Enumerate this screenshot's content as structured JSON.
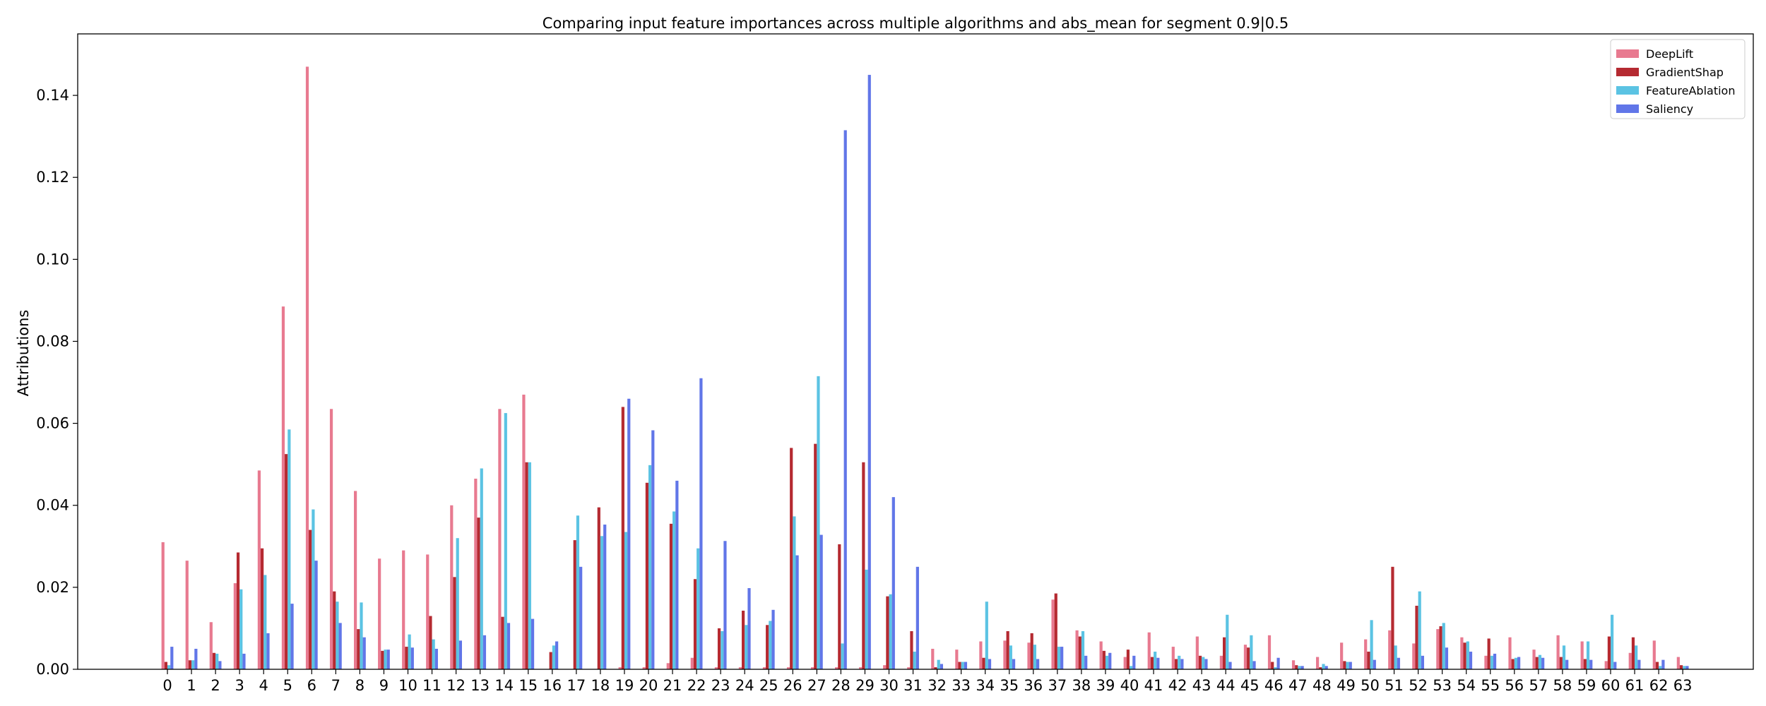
{
  "chart_data": {
    "type": "bar",
    "title": "Comparing input feature importances across multiple algorithms and abs_mean for segment 0.9|0.5",
    "xlabel": "",
    "ylabel": "Attributions",
    "ylim": [
      0,
      0.155
    ],
    "yticks": [
      "0.00",
      "0.02",
      "0.04",
      "0.06",
      "0.08",
      "0.10",
      "0.12",
      "0.14"
    ],
    "grid": false,
    "legend_position": "top-right",
    "categories": [
      "0",
      "1",
      "2",
      "3",
      "4",
      "5",
      "6",
      "7",
      "8",
      "9",
      "10",
      "11",
      "12",
      "13",
      "14",
      "15",
      "16",
      "17",
      "18",
      "19",
      "20",
      "21",
      "22",
      "23",
      "24",
      "25",
      "26",
      "27",
      "28",
      "29",
      "30",
      "31",
      "32",
      "33",
      "34",
      "35",
      "36",
      "37",
      "38",
      "39",
      "40",
      "41",
      "42",
      "43",
      "44",
      "45",
      "46",
      "47",
      "48",
      "49",
      "50",
      "51",
      "52",
      "53",
      "54",
      "55",
      "56",
      "57",
      "58",
      "59",
      "60",
      "61",
      "62",
      "63"
    ],
    "series": [
      {
        "name": "DeepLift",
        "color": "#e87a90",
        "values": [
          0.031,
          0.0265,
          0.0115,
          0.021,
          0.0485,
          0.0885,
          0.147,
          0.0635,
          0.0435,
          0.027,
          0.029,
          0.028,
          0.04,
          0.0465,
          0.0635,
          0.067,
          0.0,
          0.0,
          0.0,
          0.0005,
          0.0005,
          0.0015,
          0.0028,
          0.0005,
          0.0005,
          0.0005,
          0.0005,
          0.0005,
          0.0005,
          0.0005,
          0.001,
          0.0005,
          0.005,
          0.0048,
          0.0068,
          0.007,
          0.0065,
          0.017,
          0.0095,
          0.0068,
          0.003,
          0.009,
          0.0055,
          0.008,
          0.0033,
          0.006,
          0.0083,
          0.0022,
          0.003,
          0.0065,
          0.0073,
          0.0095,
          0.0063,
          0.0098,
          0.0078,
          0.0033,
          0.0078,
          0.0048,
          0.0083,
          0.0068,
          0.002,
          0.004,
          0.007,
          0.003
        ]
      },
      {
        "name": "GradientShap",
        "color": "#b52a31",
        "values": [
          0.0018,
          0.0022,
          0.004,
          0.0285,
          0.0295,
          0.0525,
          0.034,
          0.019,
          0.0098,
          0.0045,
          0.0055,
          0.013,
          0.0225,
          0.037,
          0.0128,
          0.0505,
          0.0042,
          0.0315,
          0.0395,
          0.064,
          0.0455,
          0.0355,
          0.022,
          0.01,
          0.0143,
          0.0108,
          0.054,
          0.055,
          0.0305,
          0.0505,
          0.0178,
          0.0093,
          0.0005,
          0.0018,
          0.0028,
          0.0093,
          0.0088,
          0.0185,
          0.008,
          0.0045,
          0.0048,
          0.003,
          0.0025,
          0.0033,
          0.0078,
          0.0053,
          0.0018,
          0.001,
          0.0005,
          0.002,
          0.0043,
          0.025,
          0.0155,
          0.0105,
          0.0065,
          0.0075,
          0.0025,
          0.003,
          0.003,
          0.0025,
          0.008,
          0.0078,
          0.0018,
          0.001
        ]
      },
      {
        "name": "FeatureAblation",
        "color": "#5bc3e3",
        "values": [
          0.001,
          0.0022,
          0.0038,
          0.0195,
          0.023,
          0.0585,
          0.039,
          0.0165,
          0.0163,
          0.0048,
          0.0085,
          0.0073,
          0.032,
          0.049,
          0.0625,
          0.0505,
          0.0058,
          0.0375,
          0.0325,
          0.0335,
          0.0498,
          0.0385,
          0.0295,
          0.0093,
          0.0108,
          0.0118,
          0.0373,
          0.0715,
          0.0063,
          0.0243,
          0.0183,
          0.0043,
          0.0023,
          0.0018,
          0.0165,
          0.0058,
          0.006,
          0.0055,
          0.0093,
          0.0033,
          0.0008,
          0.0043,
          0.0033,
          0.003,
          0.0133,
          0.0083,
          0.0005,
          0.0008,
          0.0013,
          0.0018,
          0.012,
          0.0058,
          0.019,
          0.0113,
          0.0068,
          0.0033,
          0.0028,
          0.0035,
          0.0058,
          0.0068,
          0.0133,
          0.0058,
          0.0008,
          0.0008
        ]
      },
      {
        "name": "Saliency",
        "color": "#6176e8",
        "values": [
          0.0055,
          0.005,
          0.002,
          0.0038,
          0.0088,
          0.016,
          0.0265,
          0.0113,
          0.0078,
          0.0048,
          0.0053,
          0.005,
          0.007,
          0.0083,
          0.0113,
          0.0123,
          0.0068,
          0.025,
          0.0353,
          0.066,
          0.0583,
          0.046,
          0.071,
          0.0313,
          0.0198,
          0.0145,
          0.0278,
          0.0328,
          0.1315,
          0.145,
          0.042,
          0.025,
          0.0013,
          0.0018,
          0.0025,
          0.0025,
          0.0025,
          0.0055,
          0.0033,
          0.004,
          0.0033,
          0.0028,
          0.0025,
          0.0025,
          0.0018,
          0.002,
          0.0028,
          0.0008,
          0.0008,
          0.0018,
          0.0023,
          0.0028,
          0.0033,
          0.0053,
          0.0043,
          0.0038,
          0.003,
          0.0028,
          0.0023,
          0.0023,
          0.0018,
          0.0023,
          0.0023,
          0.0008
        ]
      }
    ]
  }
}
